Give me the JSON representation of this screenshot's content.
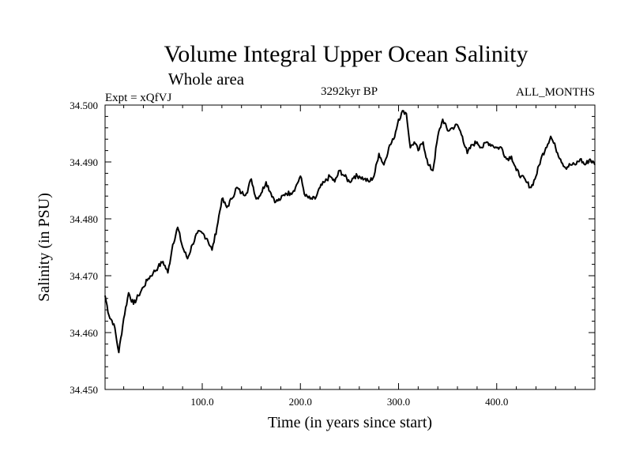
{
  "chart_data": {
    "type": "line",
    "title": "Volume Integral Upper Ocean Salinity",
    "subtitle": "Whole area",
    "expt_label": "Expt = xQfVJ",
    "period_label": "3292kyr BP",
    "months_label": "ALL_MONTHS",
    "xlabel": "Time (in years since start)",
    "ylabel": "Salinity (in PSU)",
    "xlim": [
      1,
      500
    ],
    "ylim": [
      34.45,
      34.5
    ],
    "x_ticks": [
      100,
      200,
      300,
      400
    ],
    "x_tick_labels": [
      "100.0",
      "200.0",
      "300.0",
      "400.0"
    ],
    "y_ticks": [
      34.45,
      34.46,
      34.47,
      34.48,
      34.49,
      34.5
    ],
    "y_tick_labels": [
      "34.450",
      "34.460",
      "34.470",
      "34.480",
      "34.490",
      "34.500"
    ],
    "grid": false,
    "line_color": "#000000",
    "series": [
      {
        "name": "Salinity",
        "x": [
          1,
          5,
          10,
          15,
          20,
          25,
          30,
          35,
          40,
          45,
          50,
          55,
          60,
          65,
          70,
          75,
          80,
          85,
          90,
          95,
          100,
          105,
          110,
          115,
          120,
          125,
          130,
          135,
          140,
          145,
          150,
          155,
          160,
          165,
          170,
          175,
          180,
          185,
          190,
          195,
          200,
          205,
          210,
          215,
          220,
          225,
          230,
          235,
          240,
          245,
          250,
          255,
          260,
          265,
          270,
          275,
          280,
          285,
          290,
          295,
          300,
          305,
          308,
          312,
          316,
          320,
          325,
          330,
          335,
          340,
          345,
          350,
          355,
          360,
          365,
          370,
          375,
          380,
          385,
          390,
          395,
          400,
          405,
          410,
          415,
          420,
          425,
          430,
          435,
          440,
          445,
          450,
          455,
          460,
          465,
          470,
          475,
          480,
          485,
          490,
          495,
          500
        ],
        "values": [
          34.4665,
          34.463,
          34.4615,
          34.4565,
          34.4625,
          34.467,
          34.465,
          34.4665,
          34.468,
          34.4695,
          34.4705,
          34.4715,
          34.4725,
          34.4705,
          34.4755,
          34.4785,
          34.475,
          34.473,
          34.4755,
          34.4775,
          34.4775,
          34.4765,
          34.4745,
          34.4785,
          34.4835,
          34.482,
          34.4835,
          34.4855,
          34.4845,
          34.4845,
          34.487,
          34.4835,
          34.4845,
          34.4865,
          34.4845,
          34.483,
          34.4835,
          34.4845,
          34.4845,
          34.4855,
          34.4875,
          34.484,
          34.4835,
          34.4835,
          34.4855,
          34.4865,
          34.4875,
          34.4865,
          34.4885,
          34.4875,
          34.4865,
          34.4875,
          34.4875,
          34.487,
          34.4865,
          34.4875,
          34.4915,
          34.4895,
          34.4925,
          34.494,
          34.4975,
          34.499,
          34.4985,
          34.4925,
          34.4935,
          34.492,
          34.4935,
          34.4895,
          34.4885,
          34.4945,
          34.4975,
          34.4955,
          34.496,
          34.4965,
          34.4945,
          34.4915,
          34.493,
          34.4935,
          34.4925,
          34.4935,
          34.493,
          34.4925,
          34.4925,
          34.4905,
          34.491,
          34.4885,
          34.4875,
          34.4865,
          34.4855,
          34.4875,
          34.4905,
          34.4925,
          34.4945,
          34.4925,
          34.4905,
          34.489,
          34.4895,
          34.4895,
          34.4905,
          34.4895,
          34.4905,
          34.4895
        ]
      }
    ]
  }
}
